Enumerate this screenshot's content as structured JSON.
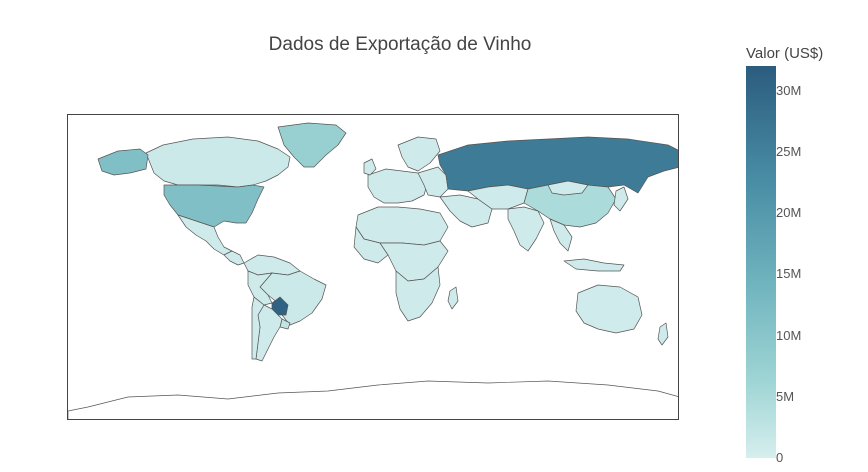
{
  "chart_data": {
    "type": "choropleth",
    "title": "Dados de Exportação de Vinho",
    "colorbar": {
      "title": "Valor (US$)",
      "range": [
        0,
        32000000
      ],
      "ticks": [
        {
          "value": 0,
          "label": "0"
        },
        {
          "value": 5000000,
          "label": "5M"
        },
        {
          "value": 10000000,
          "label": "10M"
        },
        {
          "value": 15000000,
          "label": "15M"
        },
        {
          "value": 20000000,
          "label": "20M"
        },
        {
          "value": 25000000,
          "label": "25M"
        },
        {
          "value": 30000000,
          "label": "30M"
        }
      ]
    },
    "countries": [
      {
        "name": "Paraguai",
        "value": 31000000
      },
      {
        "name": "Rússia",
        "value": 27000000
      },
      {
        "name": "Estados Unidos",
        "value": 13000000
      },
      {
        "name": "Groenlândia",
        "value": 9000000
      },
      {
        "name": "China",
        "value": 6000000
      },
      {
        "name": "Uruguai",
        "value": 3000000
      },
      {
        "name": "Canadá",
        "value": 1500000
      },
      {
        "name": "Brasil",
        "value": 1500000
      },
      {
        "name": "Austrália",
        "value": 1000000
      }
    ],
    "colorscale": [
      "#d6eeee",
      "#9ed4d4",
      "#6fb3be",
      "#4a8ea6",
      "#2b5c7e"
    ]
  }
}
